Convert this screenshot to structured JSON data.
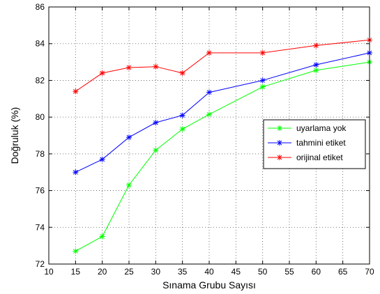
{
  "chart_data": {
    "type": "line",
    "xlabel": "Sınama Grubu Sayısı",
    "ylabel": "Doğruluk (%)",
    "xlim": [
      10,
      70
    ],
    "ylim": [
      72,
      86
    ],
    "xticks": [
      10,
      15,
      20,
      25,
      30,
      35,
      40,
      45,
      50,
      55,
      60,
      65,
      70
    ],
    "yticks": [
      72,
      74,
      76,
      78,
      80,
      82,
      84,
      86
    ],
    "grid": true,
    "legend_position": "right",
    "series": [
      {
        "name": "uyarlama yok",
        "color": "#00ff00",
        "marker": "asterisk",
        "x": [
          15,
          20,
          25,
          30,
          35,
          40,
          50,
          60,
          70
        ],
        "y": [
          72.7,
          73.5,
          76.3,
          78.2,
          79.35,
          80.15,
          81.65,
          82.55,
          83.0
        ]
      },
      {
        "name": "tahmini etiket",
        "color": "#0000ff",
        "marker": "asterisk",
        "x": [
          15,
          20,
          25,
          30,
          35,
          40,
          50,
          60,
          70
        ],
        "y": [
          77.0,
          77.7,
          78.9,
          79.7,
          80.1,
          81.35,
          82.0,
          82.85,
          83.5
        ]
      },
      {
        "name": "orijinal etiket",
        "color": "#ff0000",
        "marker": "asterisk",
        "x": [
          15,
          20,
          25,
          30,
          35,
          40,
          50,
          60,
          70
        ],
        "y": [
          81.4,
          82.4,
          82.7,
          82.75,
          82.4,
          83.5,
          83.5,
          83.9,
          84.2
        ]
      }
    ]
  }
}
